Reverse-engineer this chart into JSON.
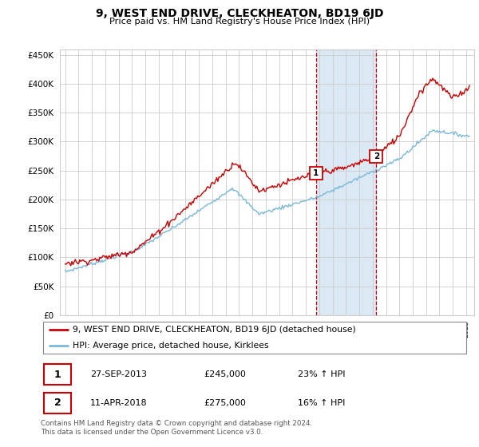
{
  "title": "9, WEST END DRIVE, CLECKHEATON, BD19 6JD",
  "subtitle": "Price paid vs. HM Land Registry's House Price Index (HPI)",
  "footer": "Contains HM Land Registry data © Crown copyright and database right 2024.\nThis data is licensed under the Open Government Licence v3.0.",
  "legend_line1": "9, WEST END DRIVE, CLECKHEATON, BD19 6JD (detached house)",
  "legend_line2": "HPI: Average price, detached house, Kirklees",
  "sale1_date": "27-SEP-2013",
  "sale1_price": "£245,000",
  "sale1_hpi": "23% ↑ HPI",
  "sale2_date": "11-APR-2018",
  "sale2_price": "£275,000",
  "sale2_hpi": "16% ↑ HPI",
  "ylim_min": 0,
  "ylim_max": 460000,
  "sale1_year": 2013.75,
  "sale2_year": 2018.28,
  "sale1_value": 245000,
  "sale2_value": 275000,
  "hpi_color": "#7ab8d9",
  "property_color": "#cc0000",
  "shade_color": "#cde0f0",
  "grid_color": "#cccccc",
  "bg_color": "#ffffff",
  "yticks": [
    0,
    50000,
    100000,
    150000,
    200000,
    250000,
    300000,
    350000,
    400000,
    450000
  ],
  "ytick_labels": [
    "£0",
    "£50K",
    "£100K",
    "£150K",
    "£200K",
    "£250K",
    "£300K",
    "£350K",
    "£400K",
    "£450K"
  ],
  "xstart": 1995,
  "xend": 2025
}
